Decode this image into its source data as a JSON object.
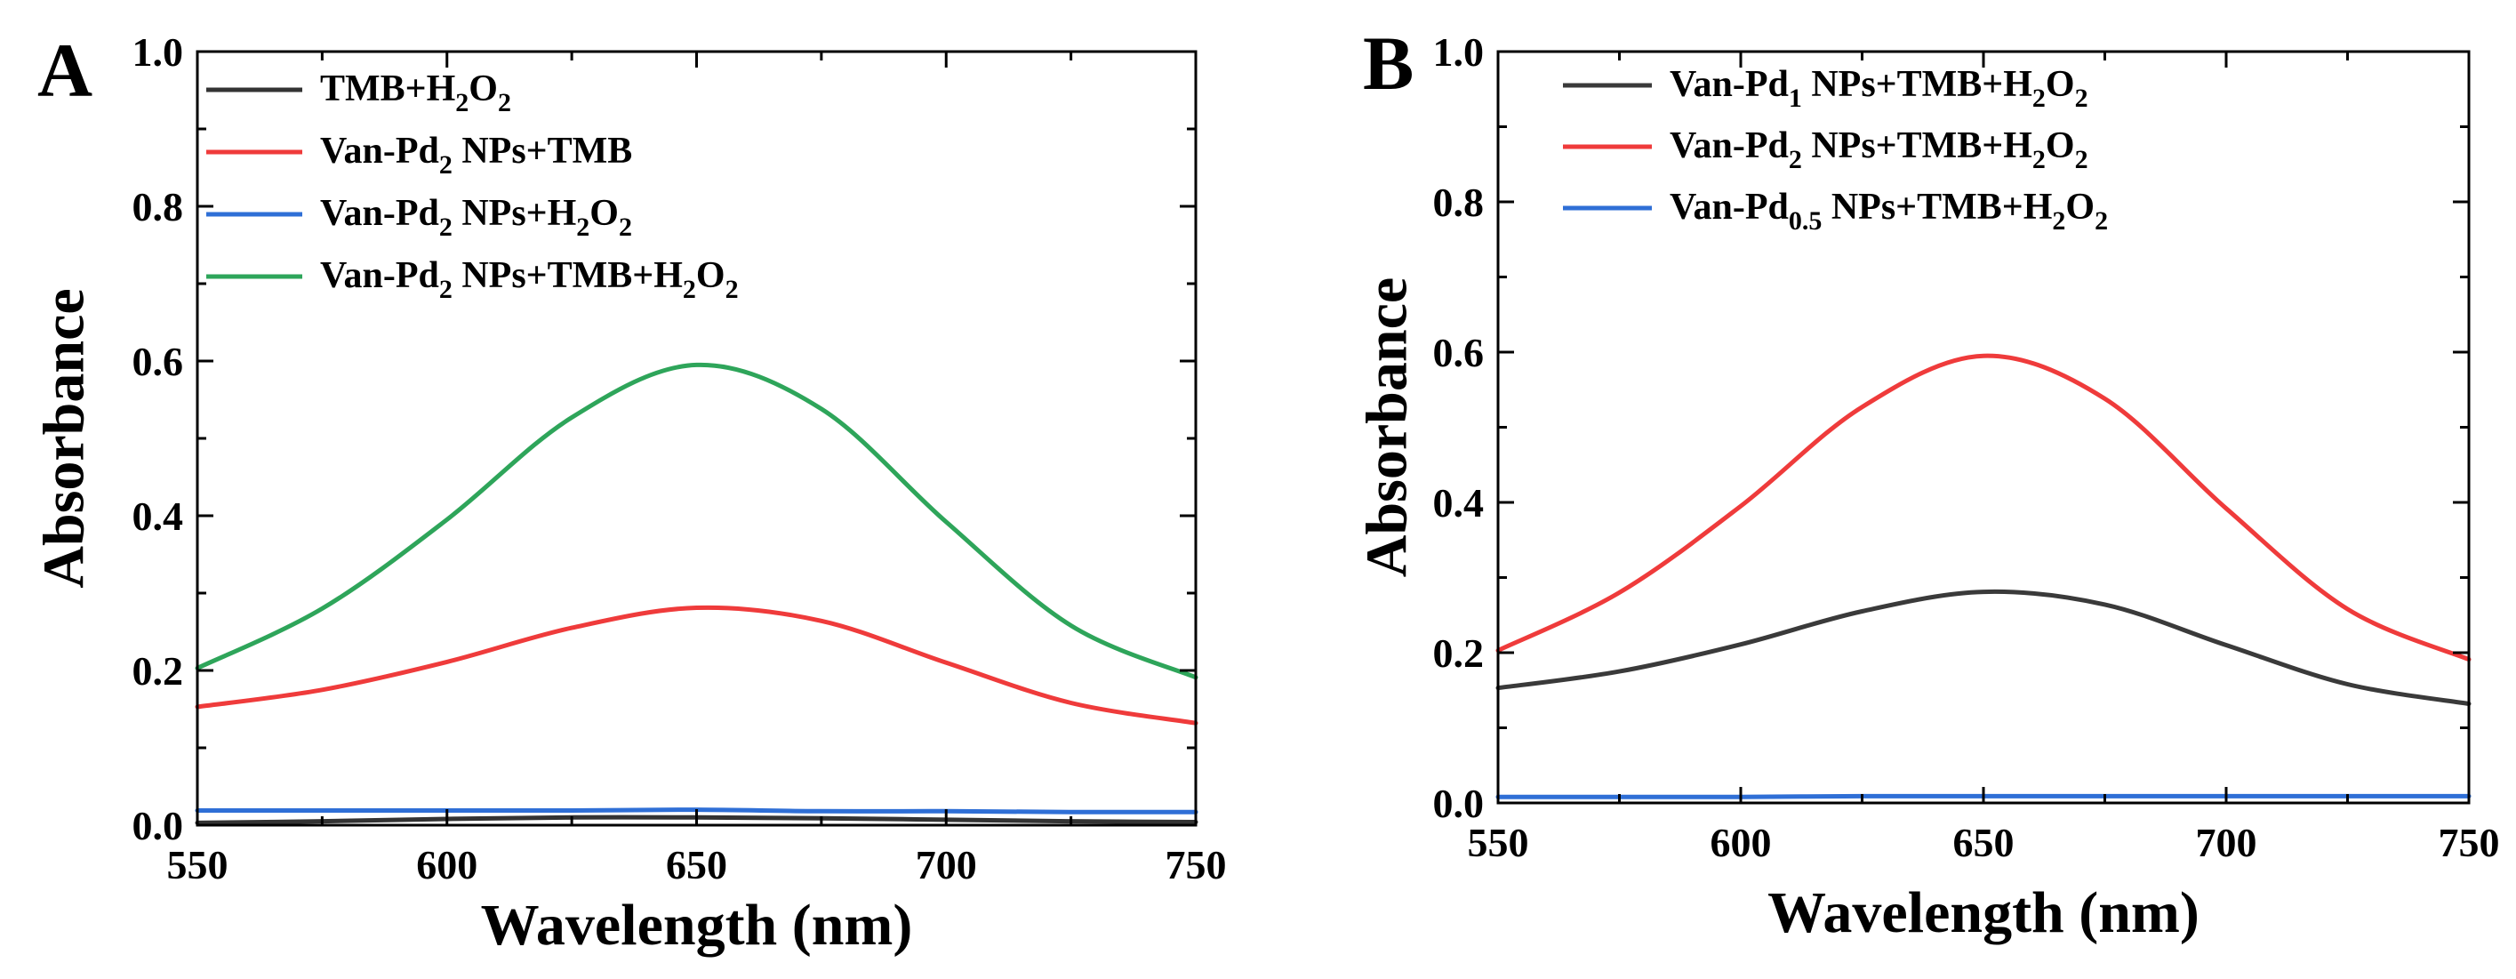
{
  "chart_data": [
    {
      "panel": "A",
      "type": "line",
      "xlabel": "Wavelength (nm)",
      "ylabel": "Absorbance",
      "xlim": [
        550,
        750
      ],
      "ylim": [
        0.0,
        1.0
      ],
      "xticks": [
        550,
        600,
        650,
        700,
        750
      ],
      "xtick_labels": [
        "550",
        "600",
        "650",
        "700",
        "750"
      ],
      "yticks": [
        0.0,
        0.2,
        0.4,
        0.6,
        0.8,
        1.0
      ],
      "ytick_labels": [
        "0.0",
        "0.2",
        "0.4",
        "0.6",
        "0.8",
        "1.0"
      ],
      "legend_position": "top-left",
      "series": [
        {
          "name": "TMB+H2O2",
          "label_parts": [
            {
              "t": "TMB+H"
            },
            {
              "t": "2",
              "sub": true
            },
            {
              "t": "O"
            },
            {
              "t": "2",
              "sub": true
            }
          ],
          "color": "#333333",
          "x": [
            550,
            575,
            600,
            625,
            650,
            675,
            700,
            725,
            750
          ],
          "y": [
            0.003,
            0.005,
            0.008,
            0.01,
            0.01,
            0.009,
            0.007,
            0.005,
            0.004
          ]
        },
        {
          "name": "Van-Pd2 NPs+TMB",
          "label_parts": [
            {
              "t": "Van-Pd"
            },
            {
              "t": "2",
              "sub": true
            },
            {
              "t": " NPs+TMB"
            }
          ],
          "color": "#ef3b3b",
          "x": [
            550,
            575,
            600,
            625,
            650,
            675,
            700,
            725,
            750
          ],
          "y": [
            0.153,
            0.175,
            0.211,
            0.255,
            0.281,
            0.264,
            0.21,
            0.158,
            0.132
          ]
        },
        {
          "name": "Van-Pd2 NPs+H2O2",
          "label_parts": [
            {
              "t": "Van-Pd"
            },
            {
              "t": "2",
              "sub": true
            },
            {
              "t": " NPs+H"
            },
            {
              "t": "2",
              "sub": true
            },
            {
              "t": "O"
            },
            {
              "t": "2",
              "sub": true
            }
          ],
          "color": "#2f6fd6",
          "x": [
            550,
            575,
            600,
            625,
            650,
            675,
            700,
            725,
            750
          ],
          "y": [
            0.019,
            0.019,
            0.019,
            0.019,
            0.02,
            0.018,
            0.018,
            0.017,
            0.017
          ]
        },
        {
          "name": "Van-Pd2 NPs+TMB+H2O2",
          "label_parts": [
            {
              "t": "Van-Pd"
            },
            {
              "t": "2",
              "sub": true
            },
            {
              "t": " NPs+TMB+H"
            },
            {
              "t": "2",
              "sub": true
            },
            {
              "t": "O"
            },
            {
              "t": "2",
              "sub": true
            }
          ],
          "color": "#2ea55a",
          "x": [
            550,
            575,
            600,
            625,
            650,
            675,
            700,
            725,
            750
          ],
          "y": [
            0.203,
            0.28,
            0.395,
            0.527,
            0.595,
            0.538,
            0.392,
            0.258,
            0.191
          ]
        }
      ]
    },
    {
      "panel": "B",
      "type": "line",
      "xlabel": "Wavelength (nm)",
      "ylabel": "Absorbance",
      "xlim": [
        550,
        750
      ],
      "ylim": [
        0.0,
        1.0
      ],
      "xticks": [
        550,
        600,
        650,
        700,
        750
      ],
      "xtick_labels": [
        "550",
        "600",
        "650",
        "700",
        "750"
      ],
      "yticks": [
        0.0,
        0.2,
        0.4,
        0.6,
        0.8,
        1.0
      ],
      "ytick_labels": [
        "0.0",
        "0.2",
        "0.4",
        "0.6",
        "0.8",
        "1.0"
      ],
      "legend_position": "top-left",
      "series": [
        {
          "name": "Van-Pd1 NPs+TMB+H2O2",
          "label_parts": [
            {
              "t": "Van-Pd"
            },
            {
              "t": "1",
              "sub": true
            },
            {
              "t": " NPs+TMB+H"
            },
            {
              "t": "2",
              "sub": true
            },
            {
              "t": "O"
            },
            {
              "t": "2",
              "sub": true
            }
          ],
          "color": "#3a3a3a",
          "x": [
            550,
            575,
            600,
            625,
            650,
            675,
            700,
            725,
            750
          ],
          "y": [
            0.153,
            0.175,
            0.211,
            0.255,
            0.281,
            0.264,
            0.21,
            0.158,
            0.132
          ]
        },
        {
          "name": "Van-Pd2 NPs+TMB+H2O2",
          "label_parts": [
            {
              "t": "Van-Pd"
            },
            {
              "t": "2",
              "sub": true
            },
            {
              "t": " NPs+TMB+H"
            },
            {
              "t": "2",
              "sub": true
            },
            {
              "t": "O"
            },
            {
              "t": "2",
              "sub": true
            }
          ],
          "color": "#ef3b3b",
          "x": [
            550,
            575,
            600,
            625,
            650,
            675,
            700,
            725,
            750
          ],
          "y": [
            0.203,
            0.28,
            0.395,
            0.527,
            0.595,
            0.538,
            0.392,
            0.258,
            0.191
          ]
        },
        {
          "name": "Van-Pd0.5 NPs+TMB+H2O2",
          "label_parts": [
            {
              "t": "Van-Pd"
            },
            {
              "t": "0.5",
              "sub": true
            },
            {
              "t": " NPs+TMB+H"
            },
            {
              "t": "2",
              "sub": true
            },
            {
              "t": "O"
            },
            {
              "t": "2",
              "sub": true
            }
          ],
          "color": "#2f6fd6",
          "x": [
            550,
            575,
            600,
            625,
            650,
            675,
            700,
            725,
            750
          ],
          "y": [
            0.008,
            0.008,
            0.008,
            0.009,
            0.009,
            0.009,
            0.009,
            0.009,
            0.009
          ]
        }
      ]
    }
  ]
}
